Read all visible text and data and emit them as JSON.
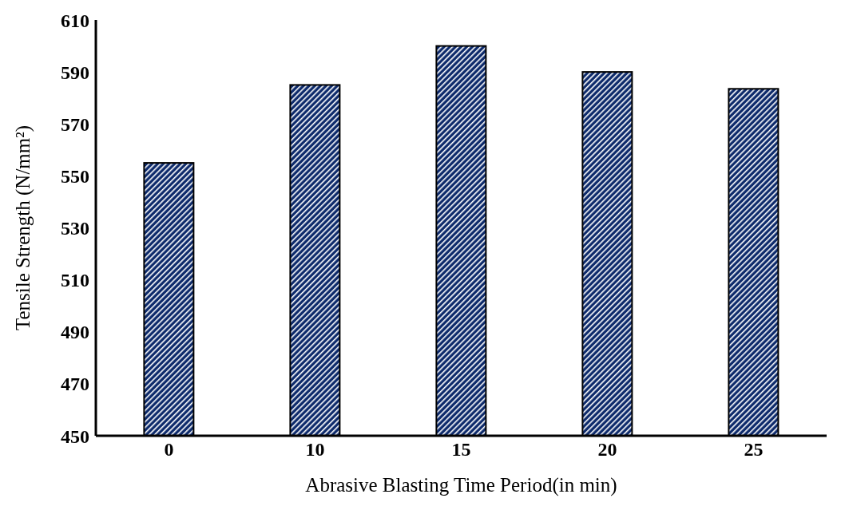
{
  "chart_data": {
    "type": "bar",
    "xlabel": "Abrasive Blasting Time Period(in min)",
    "ylabel": "Tensile Strength (N/mm²)",
    "categories": [
      "0",
      "10",
      "15",
      "20",
      "25"
    ],
    "values": [
      555,
      585,
      600,
      590,
      583.5
    ],
    "color": "#0d2a6b",
    "ylim": [
      450,
      610
    ],
    "yticks": [
      450,
      470,
      490,
      510,
      530,
      550,
      570,
      590,
      610
    ],
    "grid": false
  }
}
